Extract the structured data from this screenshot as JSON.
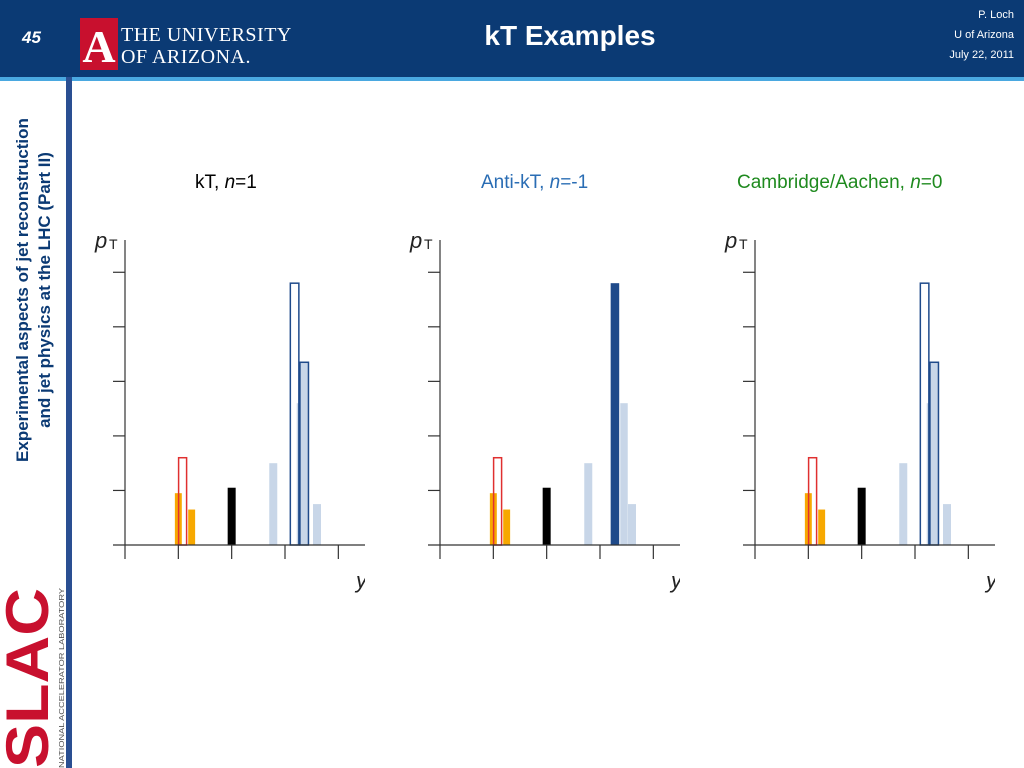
{
  "header": {
    "slide_number": "45",
    "logo_line1": "THE UNIVERSITY",
    "logo_line2": "OF ARIZONA.",
    "logo_letter": "A",
    "title": "kT Examples",
    "author": "P. Loch",
    "affiliation": "U of Arizona",
    "date": "July 22, 2011"
  },
  "sidebar": {
    "line1": "Experimental aspects of jet reconstruction",
    "line2": "and jet physics at the LHC (Part II)",
    "slac_letters": "SLAC",
    "slac_caption": "NATIONAL ACCELERATOR LABORATORY"
  },
  "colors": {
    "header_bg": "#0b3a74",
    "accent_line": "#4aa8e0",
    "kt_label": "#000000",
    "antikt_label": "#2a6db4",
    "ca_label": "#1f8a1f",
    "orange": "#f7a800",
    "red_outline": "#e03030",
    "navy": "#1f4a8a",
    "light_blue": "#c8d6e8"
  },
  "chart_data": [
    {
      "type": "bar",
      "label_prefix": "kT, ",
      "label_var": "n",
      "label_suffix": "=1",
      "ylabel": "p",
      "ylabel_sub": "T",
      "xlabel": "y",
      "ylim": [
        0,
        5.5
      ],
      "xlim": [
        0,
        4.5
      ],
      "bars": [
        {
          "x": 1.0,
          "value": 0.95,
          "width": 0.13,
          "style": "orange"
        },
        {
          "x": 1.25,
          "value": 0.65,
          "width": 0.13,
          "style": "orange"
        },
        {
          "x": 1.08,
          "value": 1.6,
          "width": 0.15,
          "style": "red_outline"
        },
        {
          "x": 2.0,
          "value": 1.05,
          "width": 0.15,
          "style": "black"
        },
        {
          "x": 2.78,
          "value": 1.5,
          "width": 0.15,
          "style": "light"
        },
        {
          "x": 3.28,
          "value": 2.6,
          "width": 0.12,
          "style": "light"
        },
        {
          "x": 3.6,
          "value": 0.75,
          "width": 0.15,
          "style": "light"
        },
        {
          "x": 3.18,
          "value": 4.8,
          "width": 0.16,
          "style": "navy_outline"
        },
        {
          "x": 3.36,
          "value": 3.35,
          "width": 0.16,
          "style": "navy_outline_fill"
        }
      ]
    },
    {
      "type": "bar",
      "label_prefix": "Anti-kT, ",
      "label_var": "n",
      "label_suffix": "=-1",
      "ylabel": "p",
      "ylabel_sub": "T",
      "xlabel": "y",
      "ylim": [
        0,
        5.5
      ],
      "xlim": [
        0,
        4.5
      ],
      "bars": [
        {
          "x": 1.0,
          "value": 0.95,
          "width": 0.13,
          "style": "orange"
        },
        {
          "x": 1.25,
          "value": 0.65,
          "width": 0.13,
          "style": "orange"
        },
        {
          "x": 1.08,
          "value": 1.6,
          "width": 0.15,
          "style": "red_outline"
        },
        {
          "x": 2.0,
          "value": 1.05,
          "width": 0.15,
          "style": "black"
        },
        {
          "x": 2.78,
          "value": 1.5,
          "width": 0.15,
          "style": "light"
        },
        {
          "x": 3.45,
          "value": 2.6,
          "width": 0.14,
          "style": "light"
        },
        {
          "x": 3.6,
          "value": 0.75,
          "width": 0.15,
          "style": "light"
        },
        {
          "x": 3.28,
          "value": 4.8,
          "width": 0.16,
          "style": "navy_fill"
        }
      ]
    },
    {
      "type": "bar",
      "label_prefix": "Cambridge/Aachen, ",
      "label_var": "n",
      "label_suffix": "=0",
      "ylabel": "p",
      "ylabel_sub": "T",
      "xlabel": "y",
      "ylim": [
        0,
        5.5
      ],
      "xlim": [
        0,
        4.5
      ],
      "bars": [
        {
          "x": 1.0,
          "value": 0.95,
          "width": 0.13,
          "style": "orange"
        },
        {
          "x": 1.25,
          "value": 0.65,
          "width": 0.13,
          "style": "orange"
        },
        {
          "x": 1.08,
          "value": 1.6,
          "width": 0.15,
          "style": "red_outline"
        },
        {
          "x": 2.0,
          "value": 1.05,
          "width": 0.15,
          "style": "black"
        },
        {
          "x": 2.78,
          "value": 1.5,
          "width": 0.15,
          "style": "light"
        },
        {
          "x": 3.28,
          "value": 2.6,
          "width": 0.12,
          "style": "light"
        },
        {
          "x": 3.6,
          "value": 0.75,
          "width": 0.15,
          "style": "light"
        },
        {
          "x": 3.18,
          "value": 4.8,
          "width": 0.16,
          "style": "navy_outline"
        },
        {
          "x": 3.36,
          "value": 3.35,
          "width": 0.16,
          "style": "navy_outline_fill"
        }
      ]
    }
  ]
}
